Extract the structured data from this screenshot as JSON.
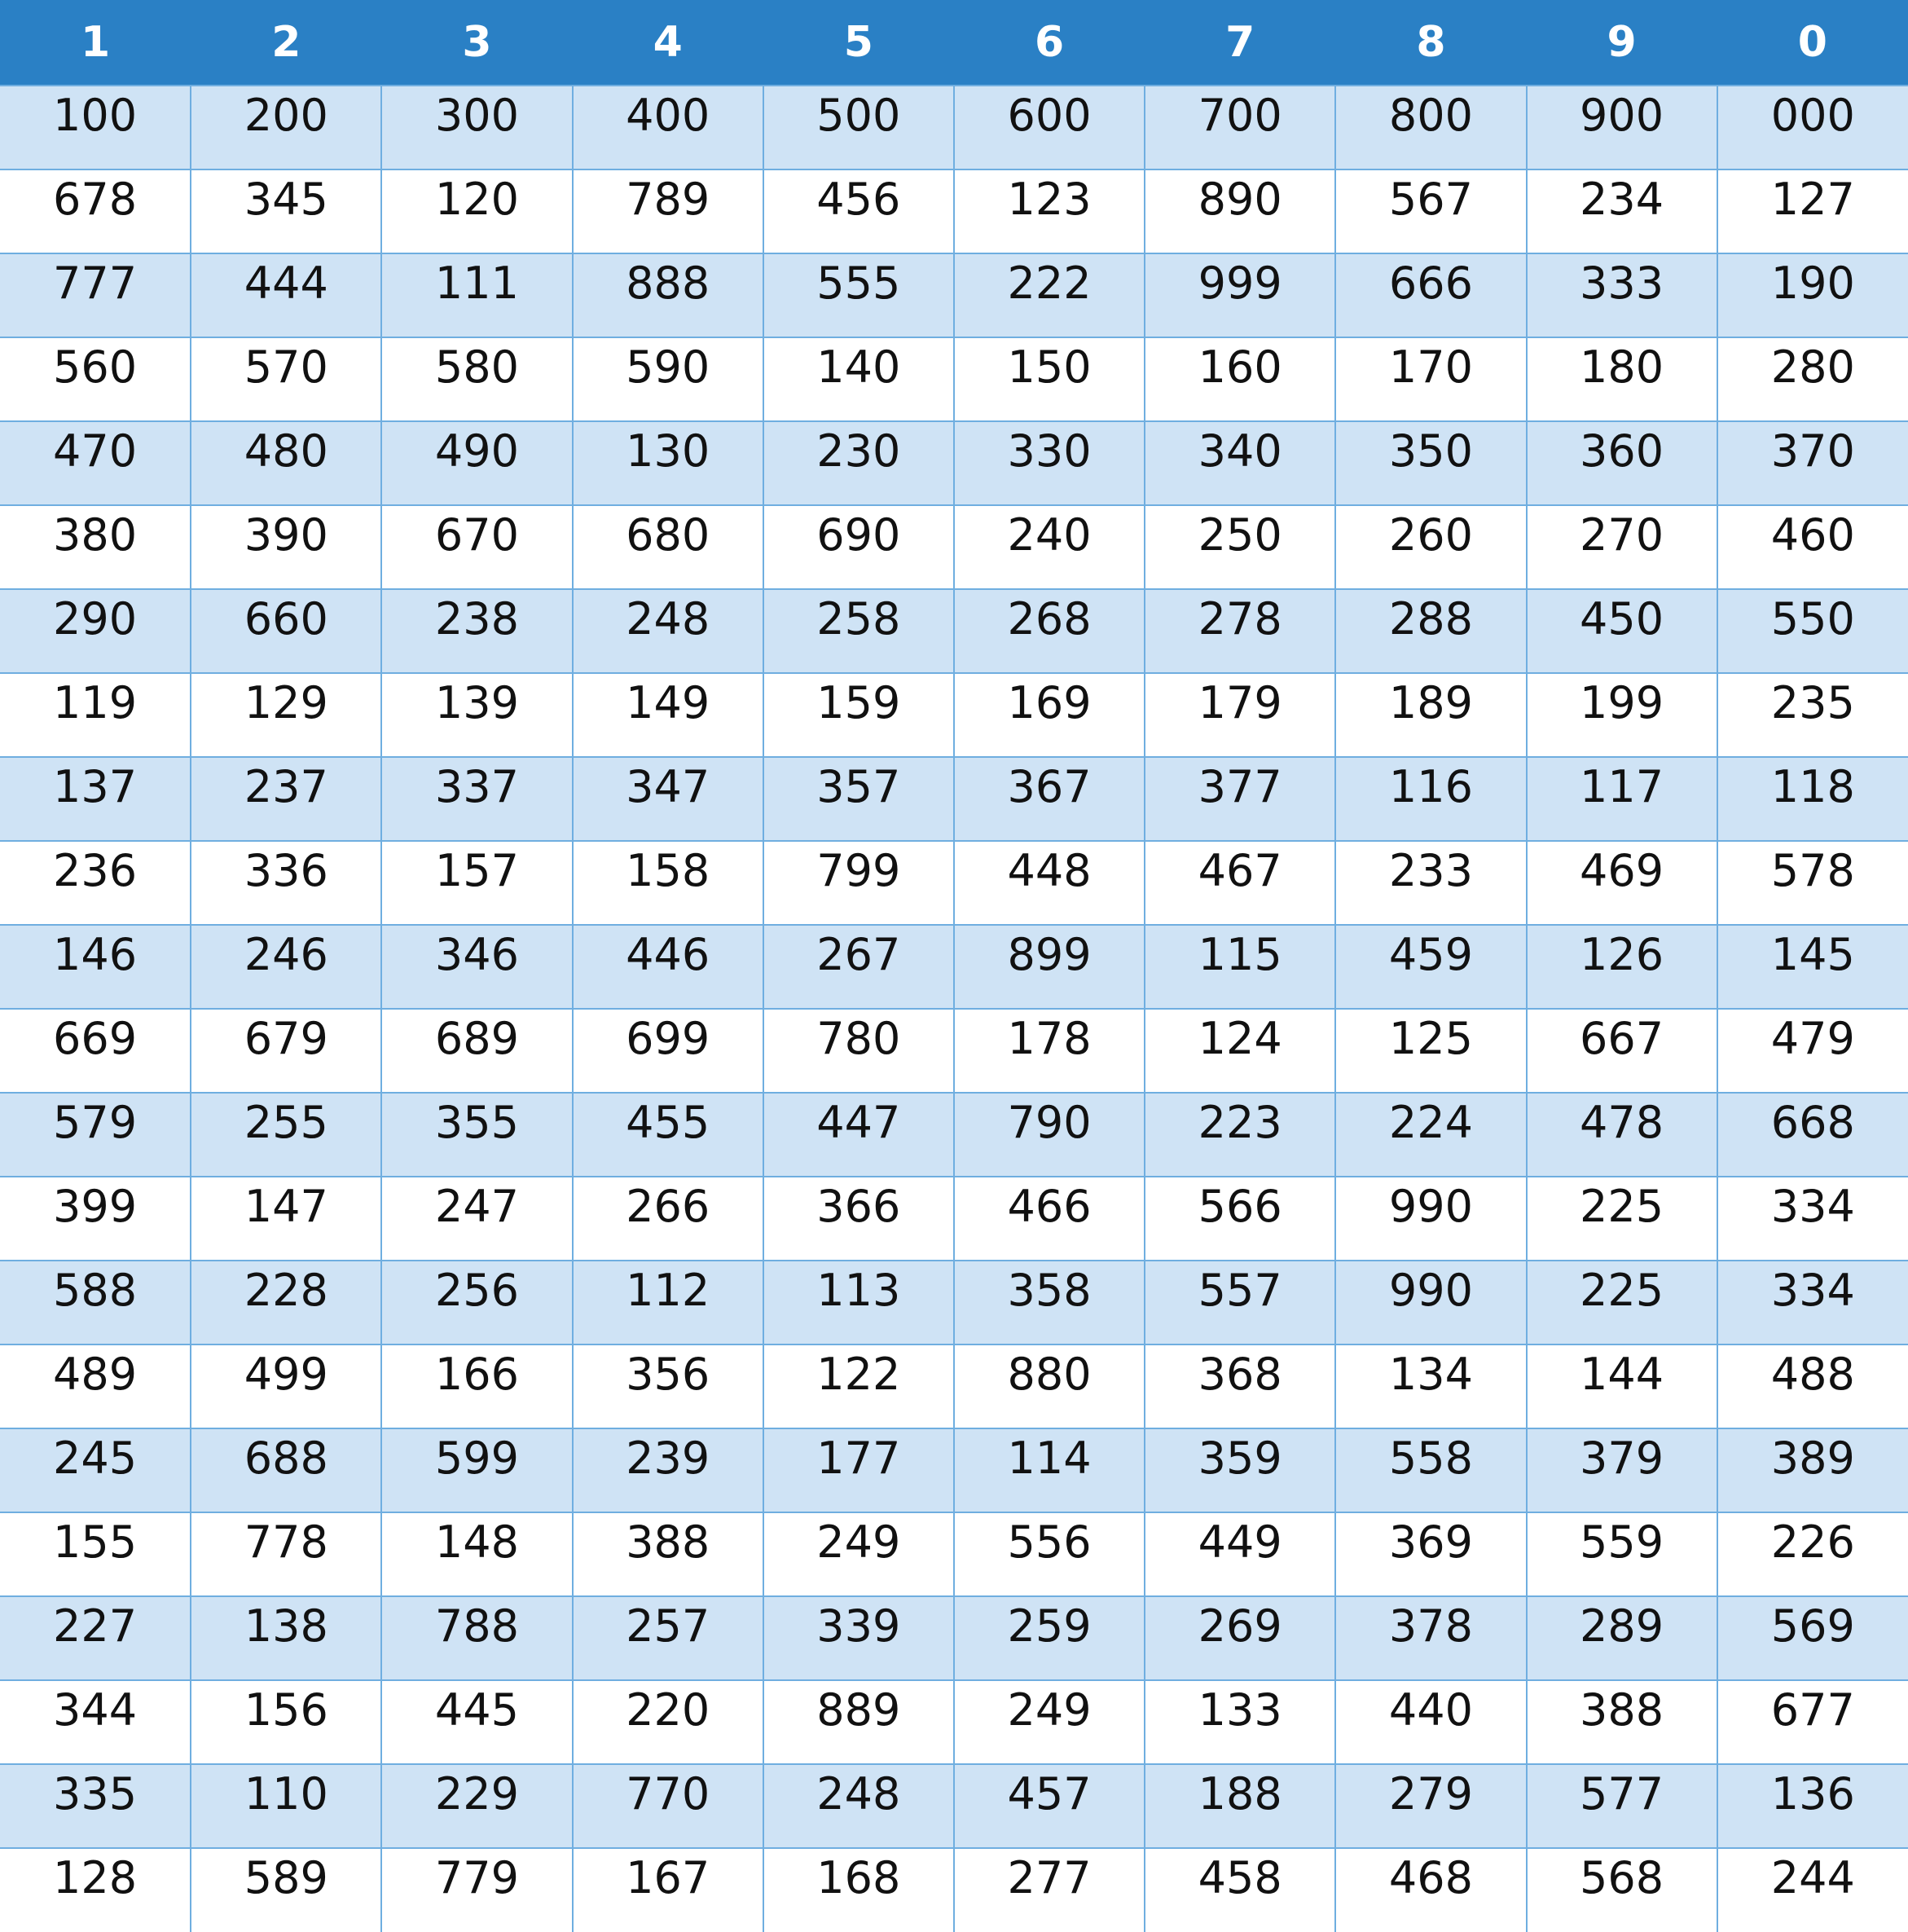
{
  "colors": {
    "header_bg": "#2a80c5",
    "header_text": "#ffffff",
    "stripe": "#cfe3f5",
    "grid": "#6faee0",
    "cell_text": "#111111"
  },
  "headers": [
    "1",
    "2",
    "3",
    "4",
    "5",
    "6",
    "7",
    "8",
    "9",
    "0"
  ],
  "rows": [
    [
      "100",
      "200",
      "300",
      "400",
      "500",
      "600",
      "700",
      "800",
      "900",
      "000"
    ],
    [
      "678",
      "345",
      "120",
      "789",
      "456",
      "123",
      "890",
      "567",
      "234",
      "127"
    ],
    [
      "777",
      "444",
      "111",
      "888",
      "555",
      "222",
      "999",
      "666",
      "333",
      "190"
    ],
    [
      "560",
      "570",
      "580",
      "590",
      "140",
      "150",
      "160",
      "170",
      "180",
      "280"
    ],
    [
      "470",
      "480",
      "490",
      "130",
      "230",
      "330",
      "340",
      "350",
      "360",
      "370"
    ],
    [
      "380",
      "390",
      "670",
      "680",
      "690",
      "240",
      "250",
      "260",
      "270",
      "460"
    ],
    [
      "290",
      "660",
      "238",
      "248",
      "258",
      "268",
      "278",
      "288",
      "450",
      "550"
    ],
    [
      "119",
      "129",
      "139",
      "149",
      "159",
      "169",
      "179",
      "189",
      "199",
      "235"
    ],
    [
      "137",
      "237",
      "337",
      "347",
      "357",
      "367",
      "377",
      "116",
      "117",
      "118"
    ],
    [
      "236",
      "336",
      "157",
      "158",
      "799",
      "448",
      "467",
      "233",
      "469",
      "578"
    ],
    [
      "146",
      "246",
      "346",
      "446",
      "267",
      "899",
      "115",
      "459",
      "126",
      "145"
    ],
    [
      "669",
      "679",
      "689",
      "699",
      "780",
      "178",
      "124",
      "125",
      "667",
      "479"
    ],
    [
      "579",
      "255",
      "355",
      "455",
      "447",
      "790",
      "223",
      "224",
      "478",
      "668"
    ],
    [
      "399",
      "147",
      "247",
      "266",
      "366",
      "466",
      "566",
      "990",
      "225",
      "334"
    ],
    [
      "588",
      "228",
      "256",
      "112",
      "113",
      "358",
      "557",
      "990",
      "225",
      "334"
    ],
    [
      "489",
      "499",
      "166",
      "356",
      "122",
      "880",
      "368",
      "134",
      "144",
      "488"
    ],
    [
      "245",
      "688",
      "599",
      "239",
      "177",
      "114",
      "359",
      "558",
      "379",
      "389"
    ],
    [
      "155",
      "778",
      "148",
      "388",
      "249",
      "556",
      "449",
      "369",
      "559",
      "226"
    ],
    [
      "227",
      "138",
      "788",
      "257",
      "339",
      "259",
      "269",
      "378",
      "289",
      "569"
    ],
    [
      "344",
      "156",
      "445",
      "220",
      "889",
      "249",
      "133",
      "440",
      "388",
      "677"
    ],
    [
      "335",
      "110",
      "229",
      "770",
      "248",
      "457",
      "188",
      "279",
      "577",
      "136"
    ],
    [
      "128",
      "589",
      "779",
      "167",
      "168",
      "277",
      "458",
      "468",
      "568",
      "244"
    ]
  ]
}
